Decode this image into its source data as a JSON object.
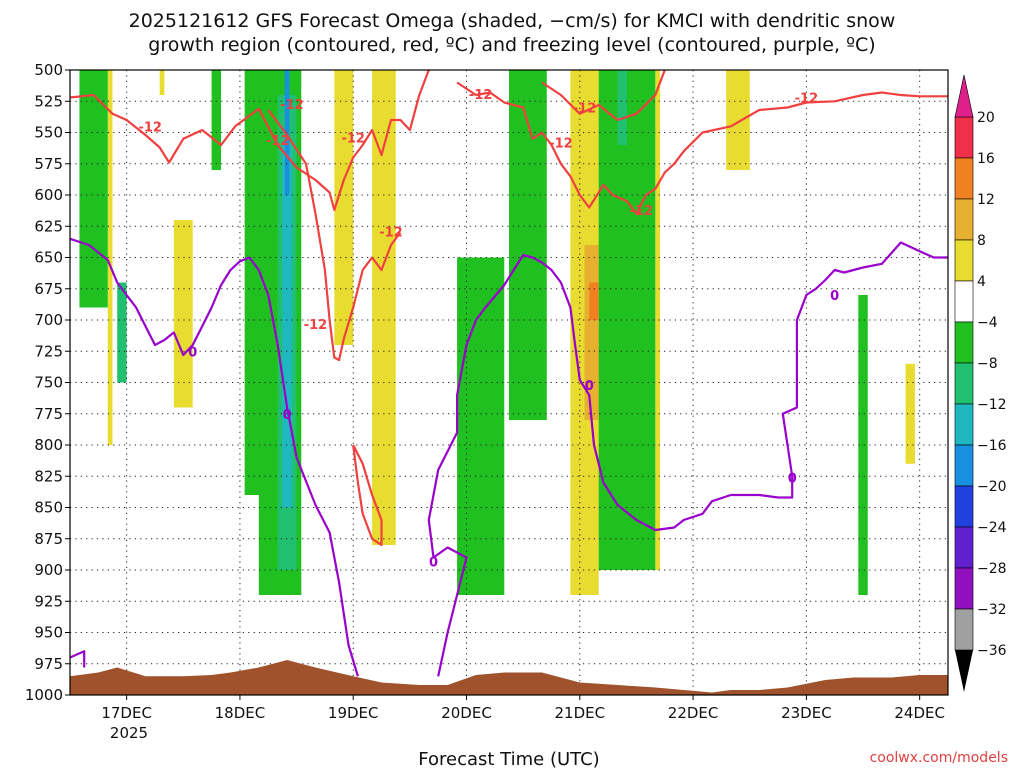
{
  "chart_data": {
    "type": "heatmap",
    "title_line1": "2025121612 GFS Forecast Omega (shaded, −cm/s) for KMCI with dendritic snow",
    "title_line2": "growth region (contoured, red, ºC) and freezing level (contoured, purple, ºC)",
    "xlabel": "Forecast Time (UTC)",
    "credit": "coolwx.com/models",
    "y_axis": {
      "unit": "hPa",
      "range": [
        500,
        1000
      ],
      "ticks": [
        500,
        525,
        550,
        575,
        600,
        625,
        650,
        675,
        700,
        725,
        750,
        775,
        800,
        825,
        850,
        875,
        900,
        925,
        950,
        975,
        1000
      ],
      "tick_labels": [
        "500",
        "525",
        "550",
        "575",
        "600",
        "625",
        "650",
        "675",
        "700",
        "725",
        "750",
        "775",
        "800",
        "825",
        "850",
        "875",
        "900",
        "925",
        "950",
        "975",
        "1000"
      ]
    },
    "x_axis": {
      "unit": "hours since 2025121612",
      "range": [
        0,
        186
      ],
      "ticks": [
        12,
        36,
        60,
        84,
        108,
        132,
        156,
        180
      ],
      "tick_labels": [
        "17DEC",
        "18DEC",
        "19DEC",
        "20DEC",
        "21DEC",
        "22DEC",
        "23DEC",
        "24DEC"
      ],
      "year_label": "2025"
    },
    "colorbar": {
      "levels": [
        -36,
        -32,
        -28,
        -24,
        -20,
        -16,
        -12,
        -8,
        -4,
        4,
        8,
        12,
        16,
        20
      ],
      "labels": [
        "20",
        "16",
        "12",
        "8",
        "4",
        "−4",
        "−8",
        "−12",
        "−16",
        "−20",
        "−24",
        "−28",
        "−32",
        "−36"
      ],
      "bands": [
        {
          "range": "16 to 20",
          "color": "#f0304a"
        },
        {
          "range": "12 to 16",
          "color": "#f08020"
        },
        {
          "range": "8 to 12",
          "color": "#e8b030"
        },
        {
          "range": "4 to 8",
          "color": "#e8dc30"
        },
        {
          "range": "-4 to 4",
          "color": "#ffffff"
        },
        {
          "range": "-8 to -4",
          "color": "#20c020"
        },
        {
          "range": "-12 to -8",
          "color": "#20c070"
        },
        {
          "range": "-16 to -12",
          "color": "#20b8c0"
        },
        {
          "range": "-20 to -16",
          "color": "#1890e0"
        },
        {
          "range": "-24 to -20",
          "color": "#2040e0"
        },
        {
          "range": "-28 to -24",
          "color": "#6020d0"
        },
        {
          "range": "-32 to -28",
          "color": "#9010c0"
        },
        {
          "range": "-36 to -32",
          "color": "#a0a0a0"
        }
      ],
      "over_color": "#e0208a",
      "under_color": "#000000"
    },
    "colors": {
      "upward_light": "#e8dc30",
      "upward_medium": "#e8b030",
      "upward_strong": "#f08020",
      "downward_light": "#20c020",
      "downward_medium": "#20c070",
      "downward_strong": "#20b8c0",
      "downward_stronger": "#1890e0",
      "dgz_contour": "#f04040",
      "freezing_contour": "#9900cc",
      "terrain": "#a0522d"
    },
    "shaded_regions": [
      {
        "name": "upward_a",
        "color": "#e8dc30",
        "x": [
          8,
          9
        ],
        "p": [
          500,
          800
        ]
      },
      {
        "name": "upward_b",
        "color": "#e8dc30",
        "x": [
          19,
          20
        ],
        "p": [
          500,
          520
        ]
      },
      {
        "name": "upward_c",
        "color": "#e8dc30",
        "x": [
          22,
          26
        ],
        "p": [
          620,
          770
        ]
      },
      {
        "name": "upward_d",
        "color": "#e8dc30",
        "x": [
          56,
          60
        ],
        "p": [
          500,
          720
        ]
      },
      {
        "name": "upward_e",
        "color": "#e8dc30",
        "x": [
          64,
          69
        ],
        "p": [
          500,
          880
        ]
      },
      {
        "name": "upward_f",
        "color": "#e8dc30",
        "x": [
          106,
          112
        ],
        "p": [
          500,
          920
        ]
      },
      {
        "name": "upward_g",
        "color": "#e8dc30",
        "x": [
          112,
          120
        ],
        "p": [
          520,
          870
        ]
      },
      {
        "name": "upward_h",
        "color": "#e8dc30",
        "x": [
          124,
          125
        ],
        "p": [
          500,
          900
        ]
      },
      {
        "name": "upward_i",
        "color": "#e8dc30",
        "x": [
          139,
          144
        ],
        "p": [
          500,
          580
        ]
      },
      {
        "name": "upward_j",
        "color": "#e8dc30",
        "x": [
          177,
          179
        ],
        "p": [
          735,
          815
        ]
      },
      {
        "name": "upward_k",
        "color": "#e8b030",
        "x": [
          109,
          112
        ],
        "p": [
          640,
          780
        ]
      },
      {
        "name": "upward_l",
        "color": "#f08020",
        "x": [
          110,
          112
        ],
        "p": [
          670,
          700
        ]
      },
      {
        "name": "downward_a",
        "color": "#20c020",
        "x": [
          2,
          8
        ],
        "p": [
          500,
          690
        ]
      },
      {
        "name": "downward_b",
        "color": "#20c070",
        "x": [
          10,
          12
        ],
        "p": [
          670,
          750
        ]
      },
      {
        "name": "downward_c",
        "color": "#20c020",
        "x": [
          30,
          32
        ],
        "p": [
          500,
          580
        ]
      },
      {
        "name": "downward_d",
        "color": "#20c020",
        "x": [
          37,
          41
        ],
        "p": [
          500,
          840
        ]
      },
      {
        "name": "downward_e",
        "color": "#20c020",
        "x": [
          40,
          49
        ],
        "p": [
          500,
          920
        ]
      },
      {
        "name": "downward_f",
        "color": "#20c070",
        "x": [
          44,
          48
        ],
        "p": [
          520,
          900
        ]
      },
      {
        "name": "downward_g",
        "color": "#20b8c0",
        "x": [
          45,
          47
        ],
        "p": [
          560,
          850
        ]
      },
      {
        "name": "downward_h",
        "color": "#1890e0",
        "x": [
          45.5,
          46.5
        ],
        "p": [
          500,
          600
        ]
      },
      {
        "name": "downward_i",
        "color": "#20c020",
        "x": [
          82,
          92
        ],
        "p": [
          650,
          920
        ]
      },
      {
        "name": "downward_j",
        "color": "#20c020",
        "x": [
          93,
          101
        ],
        "p": [
          500,
          780
        ]
      },
      {
        "name": "downward_k",
        "color": "#20c020",
        "x": [
          112,
          124
        ],
        "p": [
          500,
          900
        ]
      },
      {
        "name": "downward_l",
        "color": "#20c070",
        "x": [
          116,
          118
        ],
        "p": [
          500,
          560
        ]
      },
      {
        "name": "downward_m",
        "color": "#20c020",
        "x": [
          121,
          123
        ],
        "p": [
          620,
          660
        ]
      },
      {
        "name": "downward_n",
        "color": "#20c020",
        "x": [
          167,
          169
        ],
        "p": [
          680,
          920
        ]
      }
    ],
    "dgz_contour_label": "-12",
    "dgz_label_positions": [
      [
        17,
        545
      ],
      [
        44,
        556
      ],
      [
        47,
        527
      ],
      [
        60,
        554
      ],
      [
        68,
        629
      ],
      [
        52,
        703
      ],
      [
        87,
        519
      ],
      [
        104,
        558
      ],
      [
        109,
        530
      ],
      [
        121,
        612
      ],
      [
        156,
        522
      ]
    ],
    "dgz_top_line": [
      [
        0,
        522
      ],
      [
        5,
        520
      ],
      [
        9,
        535
      ],
      [
        12,
        540
      ],
      [
        16,
        552
      ],
      [
        19,
        562
      ],
      [
        21,
        574
      ],
      [
        24,
        555
      ],
      [
        28,
        548
      ],
      [
        32,
        560
      ],
      [
        35,
        545
      ],
      [
        40,
        531
      ],
      [
        44,
        560
      ],
      [
        48,
        578
      ],
      [
        52,
        588
      ],
      [
        55,
        598
      ],
      [
        56,
        612
      ],
      [
        58,
        588
      ],
      [
        60,
        570
      ],
      [
        62,
        560
      ],
      [
        64,
        548
      ],
      [
        66,
        568
      ],
      [
        68,
        540
      ],
      [
        70,
        540
      ],
      [
        72,
        548
      ],
      [
        74,
        520
      ],
      [
        76,
        500
      ]
    ],
    "dgz_mid_line": [
      [
        42,
        532
      ],
      [
        46,
        552
      ],
      [
        50,
        575
      ],
      [
        52,
        615
      ],
      [
        54,
        660
      ],
      [
        55,
        700
      ],
      [
        56,
        730
      ],
      [
        57,
        732
      ],
      [
        58,
        715
      ],
      [
        60,
        690
      ],
      [
        62,
        660
      ],
      [
        64,
        650
      ],
      [
        66,
        660
      ],
      [
        68,
        640
      ],
      [
        70,
        630
      ]
    ],
    "dgz_right_line": [
      [
        82,
        510
      ],
      [
        86,
        520
      ],
      [
        89,
        518
      ],
      [
        92,
        526
      ],
      [
        96,
        530
      ],
      [
        98,
        555
      ],
      [
        100,
        550
      ],
      [
        102,
        560
      ],
      [
        104,
        575
      ],
      [
        106,
        585
      ],
      [
        108,
        600
      ],
      [
        110,
        610
      ],
      [
        113,
        592
      ],
      [
        115,
        600
      ],
      [
        118,
        605
      ],
      [
        120,
        615
      ],
      [
        122,
        600
      ],
      [
        124,
        595
      ],
      [
        126,
        582
      ],
      [
        128,
        575
      ],
      [
        130,
        565
      ],
      [
        134,
        550
      ],
      [
        140,
        545
      ],
      [
        146,
        532
      ],
      [
        152,
        530
      ],
      [
        156,
        526
      ],
      [
        162,
        525
      ],
      [
        168,
        520
      ],
      [
        172,
        518
      ],
      [
        176,
        520
      ],
      [
        180,
        521
      ],
      [
        186,
        521
      ]
    ],
    "dgz_right_upper": [
      [
        100,
        510
      ],
      [
        104,
        520
      ],
      [
        108,
        535
      ],
      [
        112,
        528
      ],
      [
        116,
        540
      ],
      [
        120,
        535
      ],
      [
        124,
        520
      ],
      [
        126,
        500
      ]
    ],
    "dgz_low_loop": [
      [
        60,
        800
      ],
      [
        62,
        815
      ],
      [
        64,
        840
      ],
      [
        66,
        860
      ],
      [
        66,
        880
      ],
      [
        64,
        875
      ],
      [
        62,
        855
      ],
      [
        61,
        830
      ],
      [
        60,
        800
      ]
    ],
    "freezing_contour_label": "0",
    "freezing_label_positions": [
      [
        26,
        725
      ],
      [
        46,
        775
      ],
      [
        77,
        893
      ],
      [
        110,
        752
      ],
      [
        153,
        826
      ],
      [
        162,
        680
      ]
    ],
    "freezing_left_line": [
      [
        0,
        635
      ],
      [
        4,
        640
      ],
      [
        8,
        652
      ],
      [
        10,
        670
      ],
      [
        12,
        680
      ],
      [
        14,
        690
      ],
      [
        16,
        705
      ],
      [
        18,
        720
      ],
      [
        20,
        716
      ],
      [
        22,
        710
      ],
      [
        24,
        728
      ],
      [
        26,
        720
      ],
      [
        28,
        705
      ],
      [
        30,
        690
      ],
      [
        32,
        672
      ],
      [
        34,
        660
      ],
      [
        36,
        653
      ],
      [
        38,
        650
      ],
      [
        40,
        660
      ],
      [
        42,
        680
      ],
      [
        44,
        720
      ],
      [
        46,
        770
      ],
      [
        48,
        810
      ],
      [
        52,
        848
      ],
      [
        55,
        870
      ],
      [
        57,
        910
      ],
      [
        59,
        960
      ],
      [
        61,
        985
      ]
    ],
    "freezing_mid_line": [
      [
        78,
        985
      ],
      [
        80,
        950
      ],
      [
        82,
        920
      ],
      [
        84,
        890
      ],
      [
        80,
        882
      ],
      [
        77,
        890
      ],
      [
        76,
        860
      ],
      [
        78,
        820
      ],
      [
        82,
        790
      ],
      [
        82,
        760
      ],
      [
        84,
        720
      ],
      [
        86,
        700
      ],
      [
        88,
        690
      ],
      [
        92,
        672
      ],
      [
        94,
        660
      ],
      [
        96,
        648
      ],
      [
        98,
        650
      ],
      [
        100,
        654
      ],
      [
        102,
        660
      ],
      [
        104,
        670
      ],
      [
        106,
        690
      ],
      [
        107,
        720
      ],
      [
        108,
        748
      ],
      [
        110,
        760
      ],
      [
        111,
        800
      ],
      [
        113,
        830
      ],
      [
        116,
        848
      ],
      [
        120,
        860
      ],
      [
        124,
        868
      ],
      [
        128,
        866
      ],
      [
        130,
        860
      ],
      [
        134,
        855
      ],
      [
        136,
        845
      ],
      [
        140,
        840
      ],
      [
        146,
        840
      ],
      [
        150,
        842
      ],
      [
        153,
        842
      ],
      [
        153,
        825
      ],
      [
        152,
        800
      ],
      [
        151,
        775
      ],
      [
        154,
        770
      ],
      [
        154,
        740
      ],
      [
        154,
        700
      ],
      [
        156,
        680
      ],
      [
        158,
        675
      ],
      [
        160,
        668
      ],
      [
        162,
        660
      ],
      [
        164,
        662
      ],
      [
        166,
        660
      ],
      [
        168,
        658
      ],
      [
        172,
        655
      ],
      [
        176,
        638
      ],
      [
        180,
        645
      ],
      [
        183,
        650
      ],
      [
        186,
        650
      ]
    ],
    "freezing_corner": [
      [
        0,
        970
      ],
      [
        3,
        965
      ],
      [
        3,
        978
      ]
    ],
    "terrain_profile": [
      [
        0,
        985
      ],
      [
        6,
        982
      ],
      [
        10,
        978
      ],
      [
        16,
        985
      ],
      [
        24,
        985
      ],
      [
        30,
        984
      ],
      [
        34,
        982
      ],
      [
        40,
        978
      ],
      [
        46,
        972
      ],
      [
        52,
        978
      ],
      [
        60,
        985
      ],
      [
        66,
        990
      ],
      [
        74,
        992
      ],
      [
        80,
        992
      ],
      [
        86,
        984
      ],
      [
        92,
        982
      ],
      [
        100,
        982
      ],
      [
        108,
        990
      ],
      [
        116,
        992
      ],
      [
        124,
        994
      ],
      [
        130,
        996
      ],
      [
        136,
        998
      ],
      [
        140,
        996
      ],
      [
        146,
        996
      ],
      [
        152,
        994
      ],
      [
        160,
        988
      ],
      [
        166,
        986
      ],
      [
        174,
        986
      ],
      [
        180,
        984
      ],
      [
        186,
        984
      ]
    ]
  }
}
